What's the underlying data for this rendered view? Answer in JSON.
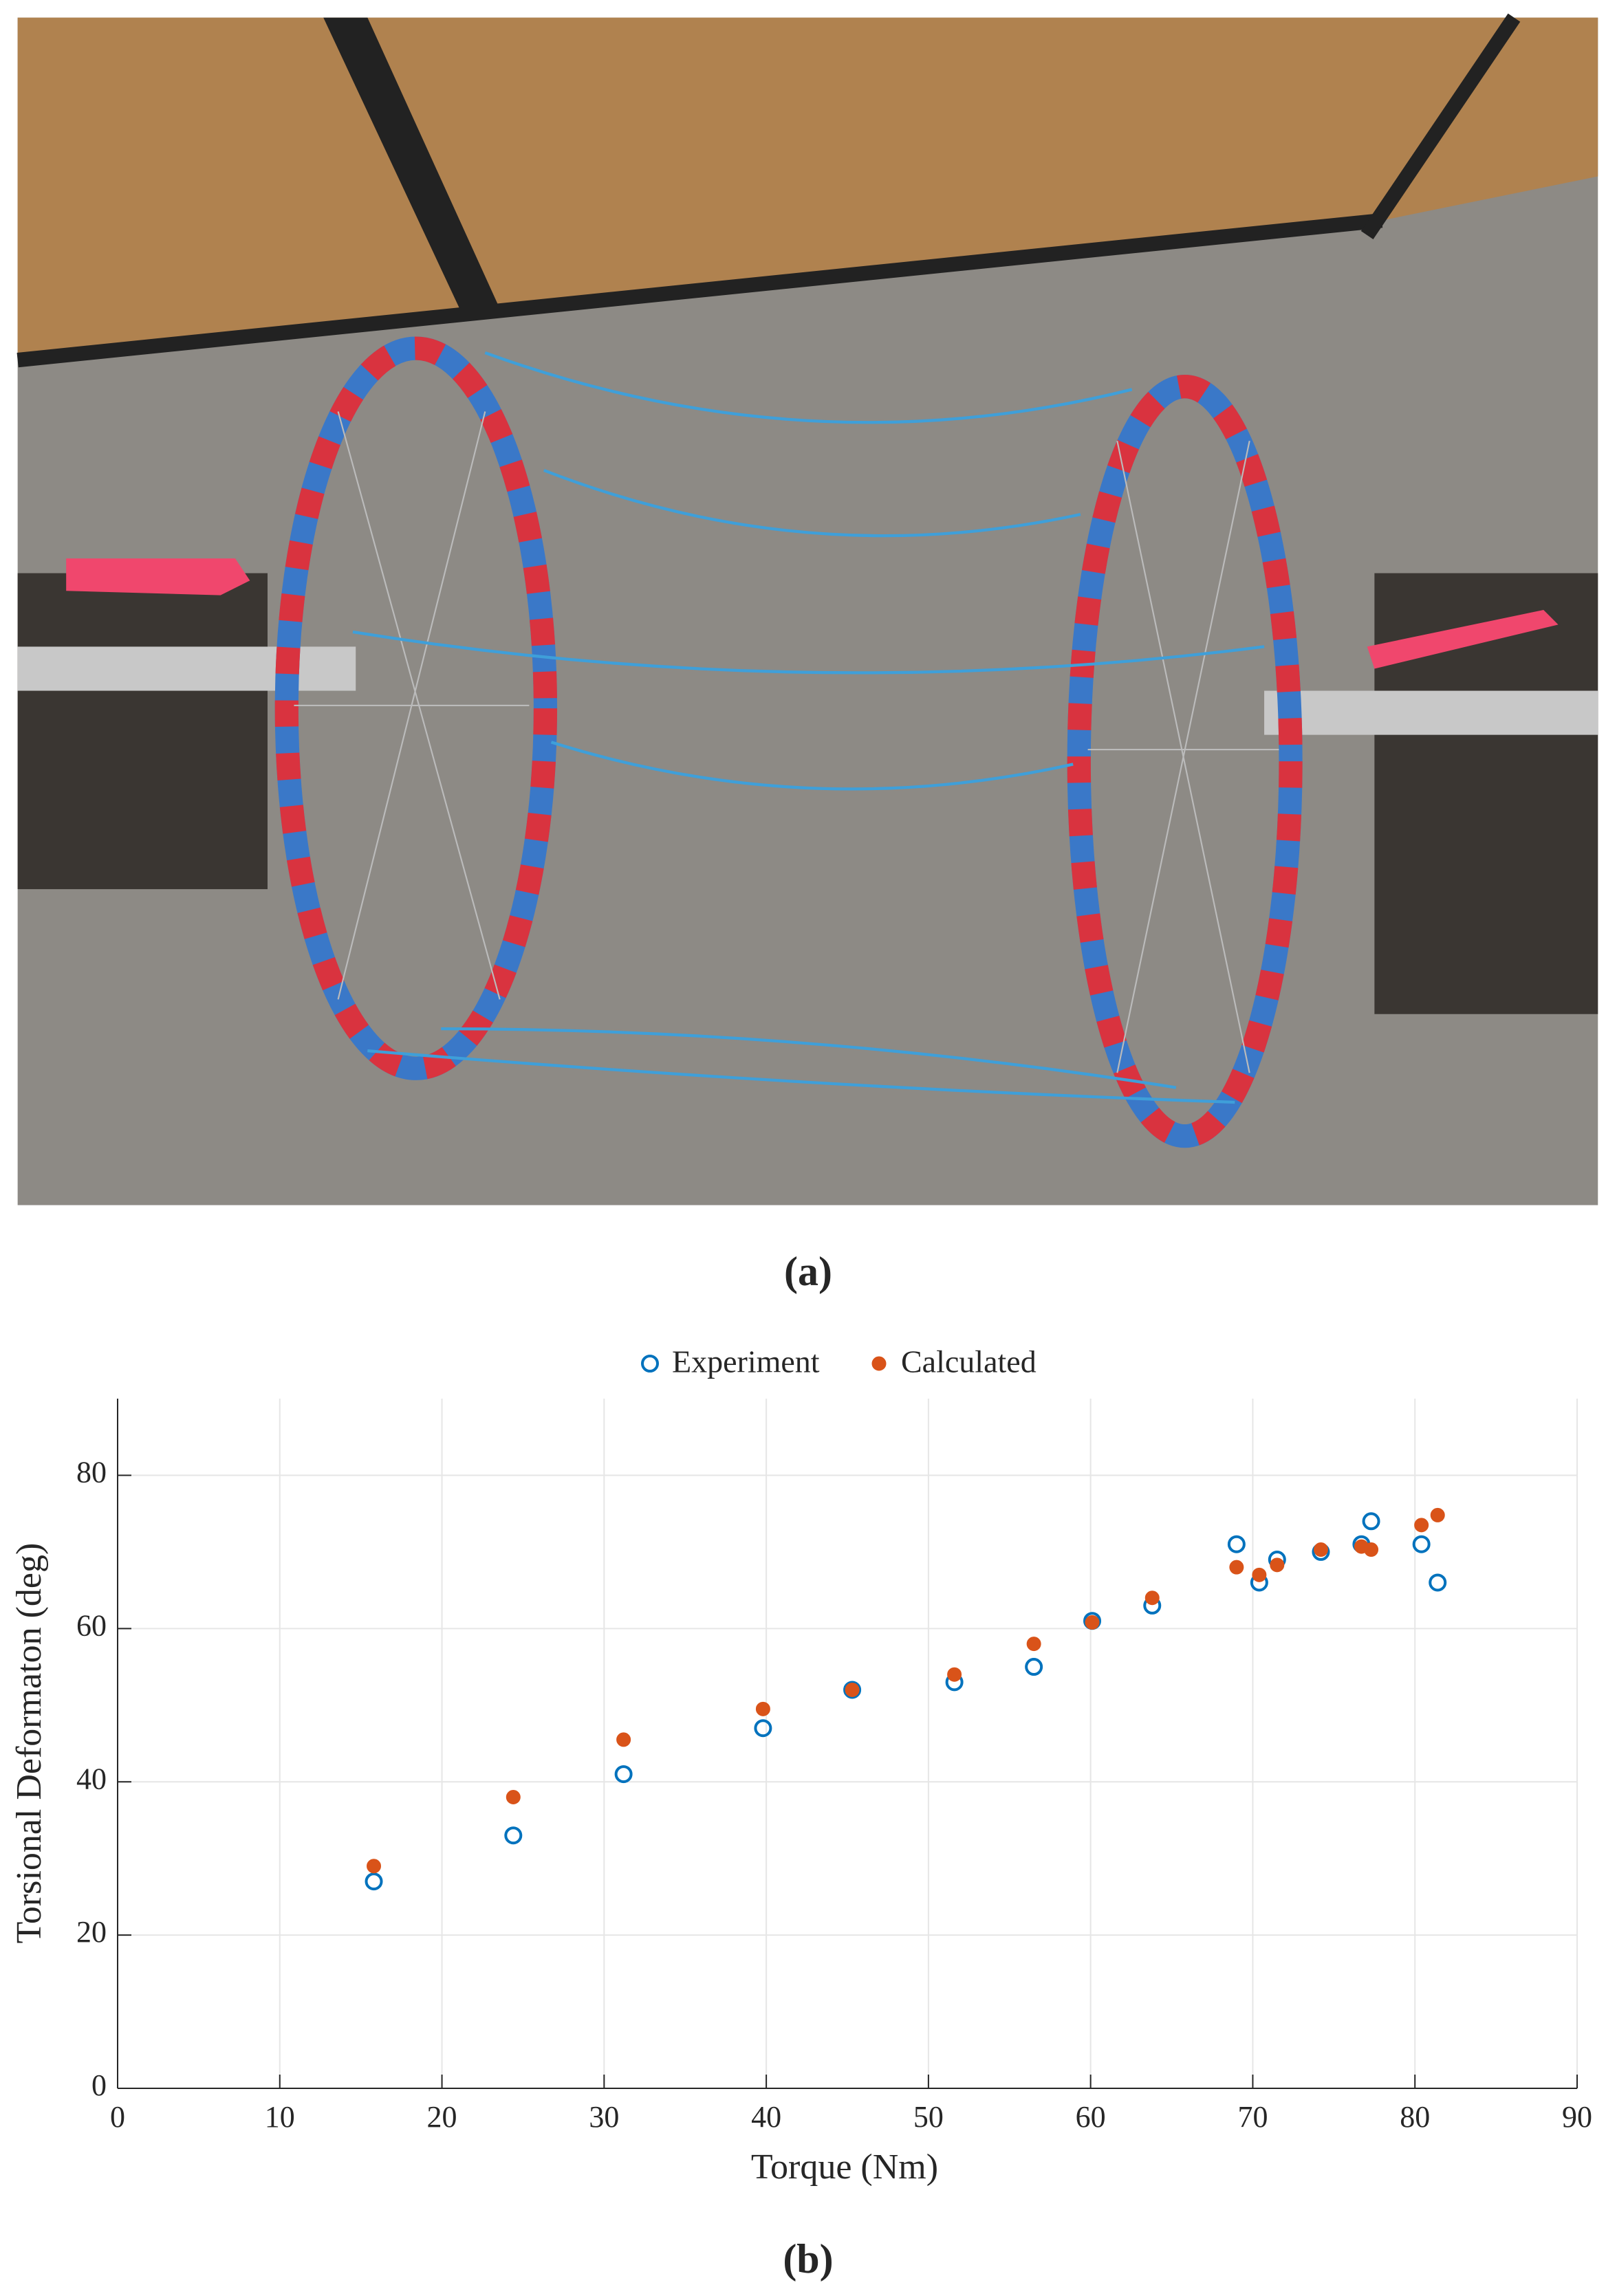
{
  "photo_caption": "(a)",
  "chart_data": {
    "type": "scatter",
    "caption": "(b)",
    "xlabel": "Torque (Nm)",
    "ylabel": "Torsional Deformaton (deg)",
    "xlim": [
      0,
      90
    ],
    "xticks": [
      0,
      10,
      20,
      30,
      40,
      50,
      60,
      70,
      80,
      90
    ],
    "ylim": [
      0,
      90
    ],
    "yticks": [
      0,
      20,
      40,
      60,
      80
    ],
    "grid": true,
    "series": [
      {
        "name": "Experiment",
        "color": "#0072bd",
        "marker": "open",
        "x": [
          15.8,
          24.4,
          31.2,
          39.8,
          45.3,
          51.6,
          56.5,
          60.1,
          63.8,
          69,
          70.4,
          71.5,
          74.2,
          76.7,
          77.3,
          80.4,
          81.4
        ],
        "values": [
          27,
          33,
          41,
          47,
          52,
          53,
          55,
          61,
          63,
          71,
          66,
          69,
          70,
          71,
          74,
          71,
          66
        ]
      },
      {
        "name": "Calculated",
        "color": "#d95319",
        "marker": "filled",
        "x": [
          15.8,
          24.4,
          31.2,
          39.8,
          45.3,
          51.6,
          56.5,
          60.1,
          63.8,
          69,
          70.4,
          71.5,
          74.2,
          76.7,
          77.3,
          80.4,
          81.4
        ],
        "values": [
          29,
          38,
          45.5,
          49.5,
          52,
          54,
          58,
          60.8,
          64,
          68,
          67,
          68.3,
          70.3,
          70.7,
          70.3,
          73.5,
          74.8
        ]
      }
    ]
  }
}
